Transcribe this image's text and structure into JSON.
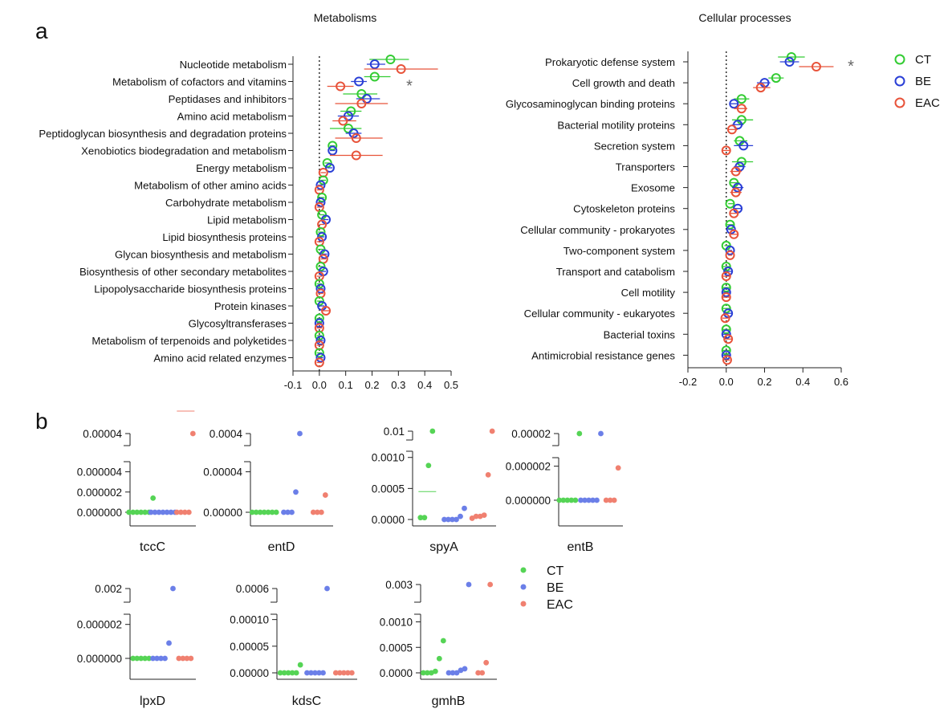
{
  "colors": {
    "CT": "#33cc33",
    "BE": "#2a3fd6",
    "EAC": "#e8533a",
    "CT_dot": "#55d455",
    "BE_dot": "#6b7fe8",
    "EAC_dot": "#f08070"
  },
  "panel_labels": {
    "a": "a",
    "b": "b"
  },
  "significance_mark": "*",
  "chart_data": [
    {
      "type": "forest",
      "title": "Metabolisms",
      "xlim": [
        -0.1,
        0.5
      ],
      "xticks": [
        "-0.1",
        "0.0",
        "0.1",
        "0.2",
        "0.3",
        "0.4",
        "0.5"
      ],
      "xtick_values": [
        -0.1,
        0.0,
        0.1,
        0.2,
        0.3,
        0.4,
        0.5
      ],
      "series": [
        "CT",
        "BE",
        "EAC"
      ],
      "rows": [
        {
          "label": "Nucleotide metabolism",
          "CT": [
            0.27,
            0.19,
            0.34
          ],
          "BE": [
            0.21,
            0.18,
            0.25
          ],
          "EAC": [
            0.31,
            0.17,
            0.45
          ],
          "sig": false
        },
        {
          "label": "Metabolism of cofactors and vitamins",
          "CT": [
            0.21,
            0.17,
            0.27
          ],
          "BE": [
            0.15,
            0.12,
            0.18
          ],
          "EAC": [
            0.08,
            0.03,
            0.13
          ],
          "sig": true
        },
        {
          "label": "Peptidases and inhibitors",
          "CT": [
            0.16,
            0.09,
            0.22
          ],
          "BE": [
            0.18,
            0.14,
            0.23
          ],
          "EAC": [
            0.16,
            0.06,
            0.26
          ],
          "sig": false
        },
        {
          "label": "Amino acid metabolism",
          "CT": [
            0.12,
            0.08,
            0.16
          ],
          "BE": [
            0.11,
            0.07,
            0.15
          ],
          "EAC": [
            0.09,
            0.05,
            0.14
          ],
          "sig": false
        },
        {
          "label": "Peptidoglycan biosynthesis and degradation proteins",
          "CT": [
            0.11,
            0.04,
            0.16
          ],
          "BE": [
            0.13,
            0.1,
            0.16
          ],
          "EAC": [
            0.14,
            0.06,
            0.24
          ],
          "sig": false
        },
        {
          "label": "Xenobiotics biodegradation and metabolism",
          "CT": [
            0.05,
            0.04,
            0.06
          ],
          "BE": [
            0.05,
            0.04,
            0.06
          ],
          "EAC": [
            0.14,
            0.04,
            0.24
          ],
          "sig": false
        },
        {
          "label": "Energy metabolism",
          "CT": [
            0.03,
            0.02,
            0.04
          ],
          "BE": [
            0.04,
            0.03,
            0.05
          ],
          "EAC": [
            0.015,
            0.005,
            0.025
          ],
          "sig": false
        },
        {
          "label": "Metabolism of other amino acids",
          "CT": [
            0.015,
            0.005,
            0.025
          ],
          "BE": [
            0.005,
            -0.005,
            0.015
          ],
          "EAC": [
            0.0,
            -0.01,
            0.01
          ],
          "sig": false
        },
        {
          "label": "Carbohydrate metabolism",
          "CT": [
            0.01,
            0.0,
            0.02
          ],
          "BE": [
            0.005,
            -0.005,
            0.015
          ],
          "EAC": [
            0.0,
            -0.01,
            0.01
          ],
          "sig": false
        },
        {
          "label": "Lipid metabolism",
          "CT": [
            0.01,
            0.0,
            0.02
          ],
          "BE": [
            0.025,
            0.015,
            0.035
          ],
          "EAC": [
            0.01,
            0.0,
            0.02
          ],
          "sig": false
        },
        {
          "label": "Lipid biosynthesis proteins",
          "CT": [
            0.005,
            -0.005,
            0.015
          ],
          "BE": [
            0.01,
            0.0,
            0.02
          ],
          "EAC": [
            0.0,
            -0.01,
            0.01
          ],
          "sig": false
        },
        {
          "label": "Glycan biosynthesis and metabolism",
          "CT": [
            0.005,
            -0.005,
            0.015
          ],
          "BE": [
            0.02,
            0.01,
            0.03
          ],
          "EAC": [
            0.015,
            0.005,
            0.025
          ],
          "sig": false
        },
        {
          "label": "Biosynthesis of other secondary metabolites",
          "CT": [
            0.005,
            -0.005,
            0.015
          ],
          "BE": [
            0.015,
            0.005,
            0.025
          ],
          "EAC": [
            0.0,
            -0.01,
            0.01
          ],
          "sig": false
        },
        {
          "label": "Lipopolysaccharide biosynthesis proteins",
          "CT": [
            0.0,
            -0.01,
            0.01
          ],
          "BE": [
            0.005,
            -0.005,
            0.015
          ],
          "EAC": [
            0.005,
            -0.005,
            0.015
          ],
          "sig": false
        },
        {
          "label": "Protein kinases",
          "CT": [
            0.0,
            -0.01,
            0.01
          ],
          "BE": [
            0.01,
            0.0,
            0.02
          ],
          "EAC": [
            0.025,
            0.01,
            0.04
          ],
          "sig": false
        },
        {
          "label": "Glycosyltransferases",
          "CT": [
            0.0,
            -0.01,
            0.01
          ],
          "BE": [
            0.0,
            -0.01,
            0.01
          ],
          "EAC": [
            0.0,
            -0.01,
            0.01
          ],
          "sig": false
        },
        {
          "label": "Metabolism of terpenoids and polyketides",
          "CT": [
            0.0,
            -0.01,
            0.01
          ],
          "BE": [
            0.005,
            -0.005,
            0.015
          ],
          "EAC": [
            0.0,
            -0.01,
            0.01
          ],
          "sig": false
        },
        {
          "label": "Amino acid related enzymes",
          "CT": [
            0.0,
            -0.01,
            0.01
          ],
          "BE": [
            0.005,
            -0.005,
            0.015
          ],
          "EAC": [
            0.0,
            -0.01,
            0.01
          ],
          "sig": false
        }
      ]
    },
    {
      "type": "forest",
      "title": "Cellular processes",
      "xlim": [
        -0.2,
        0.6
      ],
      "xticks": [
        "-0.2",
        "0.0",
        "0.2",
        "0.4",
        "0.6"
      ],
      "xtick_values": [
        -0.2,
        0.0,
        0.2,
        0.4,
        0.6
      ],
      "series": [
        "CT",
        "BE",
        "EAC"
      ],
      "rows": [
        {
          "label": "Prokaryotic defense system",
          "CT": [
            0.34,
            0.27,
            0.41
          ],
          "BE": [
            0.33,
            0.28,
            0.38
          ],
          "EAC": [
            0.47,
            0.38,
            0.56
          ],
          "sig": true
        },
        {
          "label": "Cell growth and death",
          "CT": [
            0.26,
            0.22,
            0.3
          ],
          "BE": [
            0.2,
            0.16,
            0.23
          ],
          "EAC": [
            0.18,
            0.14,
            0.23
          ],
          "sig": false
        },
        {
          "label": "Glycosaminoglycan binding proteins",
          "CT": [
            0.08,
            0.04,
            0.12
          ],
          "BE": [
            0.04,
            0.02,
            0.06
          ],
          "EAC": [
            0.08,
            0.04,
            0.11
          ],
          "sig": false
        },
        {
          "label": "Bacterial motility proteins",
          "CT": [
            0.08,
            0.03,
            0.14
          ],
          "BE": [
            0.06,
            0.03,
            0.09
          ],
          "EAC": [
            0.03,
            0.01,
            0.06
          ],
          "sig": false
        },
        {
          "label": "Secretion system",
          "CT": [
            0.07,
            0.04,
            0.11
          ],
          "BE": [
            0.09,
            0.04,
            0.14
          ],
          "EAC": [
            0.0,
            -0.02,
            0.02
          ],
          "sig": false
        },
        {
          "label": "Transporters",
          "CT": [
            0.08,
            0.03,
            0.14
          ],
          "BE": [
            0.07,
            0.04,
            0.1
          ],
          "EAC": [
            0.05,
            0.02,
            0.08
          ],
          "sig": false
        },
        {
          "label": "Exosome",
          "CT": [
            0.04,
            0.02,
            0.07
          ],
          "BE": [
            0.06,
            0.03,
            0.09
          ],
          "EAC": [
            0.05,
            0.02,
            0.08
          ],
          "sig": false
        },
        {
          "label": "Cytoskeleton proteins",
          "CT": [
            0.02,
            0.01,
            0.04
          ],
          "BE": [
            0.06,
            0.04,
            0.08
          ],
          "EAC": [
            0.04,
            0.02,
            0.06
          ],
          "sig": false
        },
        {
          "label": "Cellular community - prokaryotes",
          "CT": [
            0.02,
            0.0,
            0.04
          ],
          "BE": [
            0.025,
            0.01,
            0.04
          ],
          "EAC": [
            0.04,
            0.02,
            0.06
          ],
          "sig": false
        },
        {
          "label": "Two-component system",
          "CT": [
            0.0,
            -0.01,
            0.02
          ],
          "BE": [
            0.02,
            0.01,
            0.03
          ],
          "EAC": [
            0.02,
            0.01,
            0.03
          ],
          "sig": false
        },
        {
          "label": "Transport and catabolism",
          "CT": [
            0.0,
            -0.02,
            0.02
          ],
          "BE": [
            0.01,
            -0.01,
            0.03
          ],
          "EAC": [
            0.0,
            -0.02,
            0.02
          ],
          "sig": false
        },
        {
          "label": "Cell motility",
          "CT": [
            0.0,
            -0.02,
            0.02
          ],
          "BE": [
            0.0,
            -0.02,
            0.02
          ],
          "EAC": [
            0.0,
            -0.02,
            0.02
          ],
          "sig": false
        },
        {
          "label": "Cellular community - eukaryotes",
          "CT": [
            0.0,
            -0.02,
            0.02
          ],
          "BE": [
            0.01,
            -0.01,
            0.03
          ],
          "EAC": [
            -0.005,
            -0.02,
            0.01
          ],
          "sig": false
        },
        {
          "label": "Bacterial toxins",
          "CT": [
            0.0,
            -0.02,
            0.02
          ],
          "BE": [
            0.0,
            -0.02,
            0.02
          ],
          "EAC": [
            0.01,
            -0.01,
            0.03
          ],
          "sig": false
        },
        {
          "label": "Antimicrobial resistance genes",
          "CT": [
            0.0,
            -0.02,
            0.02
          ],
          "BE": [
            0.0,
            -0.02,
            0.02
          ],
          "EAC": [
            0.005,
            -0.01,
            0.02
          ],
          "sig": false
        }
      ]
    },
    {
      "type": "scatter",
      "gene": "tccC",
      "axis_break": true,
      "upper_ticks": [
        "0.00004"
      ],
      "upper_values": [
        4e-05
      ],
      "lower_ticks": [
        "0.000000",
        "0.000002",
        "0.000004"
      ],
      "lower_values": [
        0,
        2e-06,
        4e-06
      ],
      "lower_max": 5e-06,
      "points": {
        "CT": [
          0,
          0,
          0,
          0,
          0,
          0,
          1.4e-06
        ],
        "BE": [
          0,
          0,
          0,
          0,
          0,
          0,
          0
        ],
        "EAC": [
          0,
          0,
          0,
          0,
          4e-05
        ]
      },
      "means": {
        "EAC": 1e-05
      }
    },
    {
      "type": "scatter",
      "gene": "entD",
      "axis_break": true,
      "upper_ticks": [
        "0.0004"
      ],
      "upper_values": [
        0.0004
      ],
      "lower_ticks": [
        "0.00000",
        "0.00004"
      ],
      "lower_values": [
        0,
        4e-05
      ],
      "lower_max": 5e-05,
      "points": {
        "CT": [
          0,
          0,
          0,
          0,
          0,
          0,
          0
        ],
        "BE": [
          0,
          0,
          0,
          2e-05,
          0.0004
        ],
        "EAC": [
          0,
          0,
          0,
          1.7e-05
        ]
      },
      "means": {}
    },
    {
      "type": "scatter",
      "gene": "spyA",
      "axis_break": true,
      "upper_ticks": [
        "0.01"
      ],
      "upper_values": [
        0.01
      ],
      "lower_ticks": [
        "0.0000",
        "0.0005",
        "0.0010"
      ],
      "lower_values": [
        0,
        0.0005,
        0.001
      ],
      "lower_max": 0.0011,
      "points": {
        "CT": [
          3e-05,
          3e-05,
          0.00087,
          0.01
        ],
        "BE": [
          0,
          0,
          0,
          0,
          5e-05,
          0.00018
        ],
        "EAC": [
          2e-05,
          5e-05,
          5e-05,
          7e-05,
          0.00072,
          0.0096
        ]
      },
      "means": {
        "CT": 0.00045
      }
    },
    {
      "type": "scatter",
      "gene": "entB",
      "axis_break": true,
      "upper_ticks": [
        "0.00002"
      ],
      "upper_values": [
        2e-05
      ],
      "lower_ticks": [
        "0.000000",
        "0.000002"
      ],
      "lower_values": [
        0,
        2e-06
      ],
      "lower_max": 2.5e-06,
      "points": {
        "CT": [
          0,
          0,
          0,
          0,
          0,
          1.9e-05
        ],
        "BE": [
          0,
          0,
          0,
          0,
          0,
          2e-05
        ],
        "EAC": [
          0,
          0,
          0,
          1.9e-06
        ]
      },
      "means": {}
    },
    {
      "type": "scatter",
      "gene": "lpxD",
      "axis_break": true,
      "upper_ticks": [
        "0.002"
      ],
      "upper_values": [
        0.002
      ],
      "lower_ticks": [
        "0.000000",
        "0.000002"
      ],
      "lower_values": [
        0,
        2e-06
      ],
      "lower_max": 2.6e-06,
      "points": {
        "CT": [
          0,
          0,
          0,
          0,
          0
        ],
        "BE": [
          0,
          0,
          0,
          0,
          9e-07,
          0.002
        ],
        "EAC": [
          0,
          0,
          0,
          0
        ]
      },
      "means": {}
    },
    {
      "type": "scatter",
      "gene": "kdsC",
      "axis_break": true,
      "upper_ticks": [
        "0.0006"
      ],
      "upper_values": [
        0.0006
      ],
      "lower_ticks": [
        "0.00000",
        "0.00005",
        "0.00010"
      ],
      "lower_values": [
        0,
        5e-05,
        0.0001
      ],
      "lower_max": 0.00011,
      "points": {
        "CT": [
          0,
          0,
          0,
          0,
          0,
          1.5e-05
        ],
        "BE": [
          0,
          0,
          0,
          0,
          0,
          0.00059
        ],
        "EAC": [
          0,
          0,
          0,
          0,
          0
        ]
      },
      "means": {}
    },
    {
      "type": "scatter",
      "gene": "gmhB",
      "axis_break": true,
      "upper_ticks": [
        "0.003"
      ],
      "upper_values": [
        0.003
      ],
      "lower_ticks": [
        "0.0000",
        "0.0005",
        "0.0010"
      ],
      "lower_values": [
        0,
        0.0005,
        0.001
      ],
      "lower_max": 0.00115,
      "points": {
        "CT": [
          0,
          0,
          0,
          3e-05,
          0.00028,
          0.00063
        ],
        "BE": [
          0,
          0,
          0,
          5e-05,
          8e-05,
          0.0019
        ],
        "EAC": [
          0,
          0,
          0.0002,
          0.0027
        ]
      },
      "means": {}
    }
  ],
  "legend": [
    {
      "key": "CT",
      "label": "CT"
    },
    {
      "key": "BE",
      "label": "BE"
    },
    {
      "key": "EAC",
      "label": "EAC"
    }
  ]
}
